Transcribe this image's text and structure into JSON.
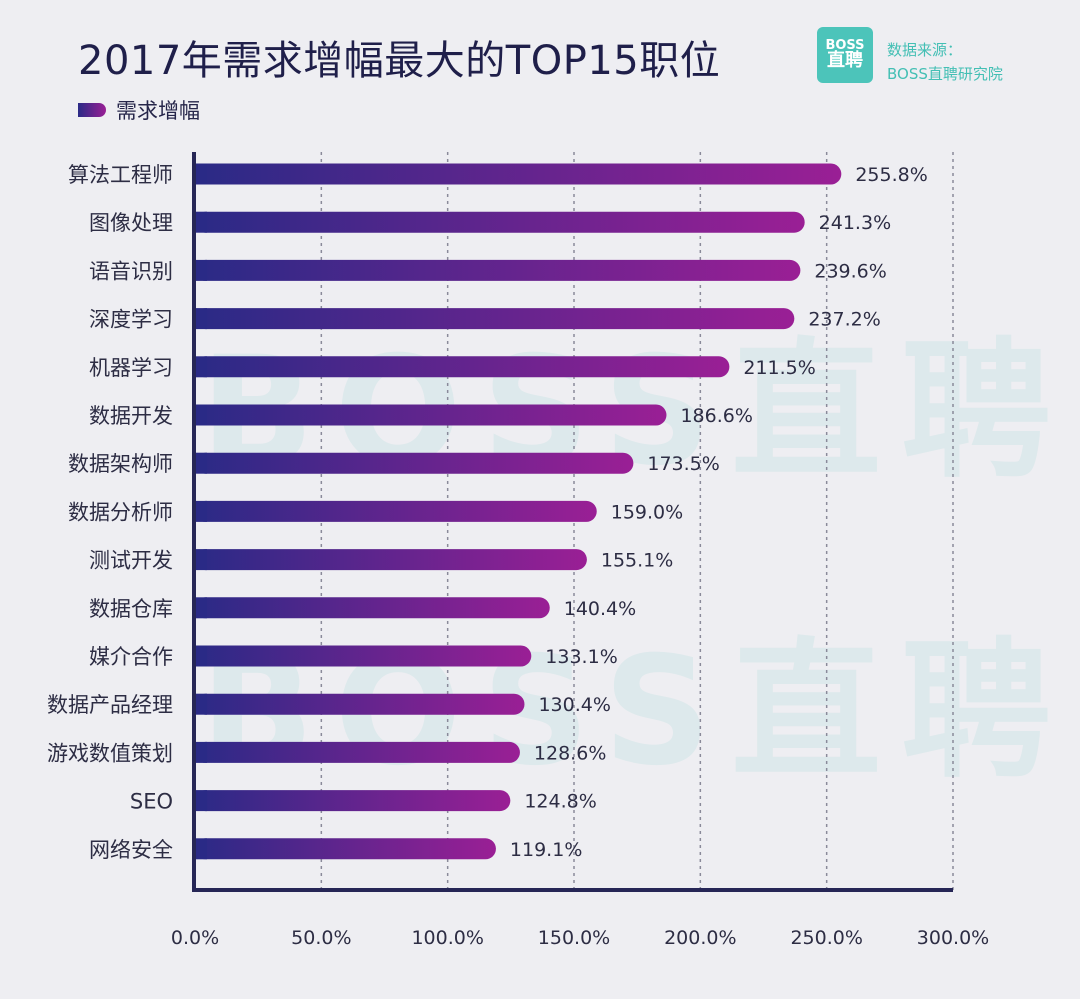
{
  "header": {
    "title": "2017年需求增幅最大的TOP15职位",
    "legend_label": "需求增幅"
  },
  "brand": {
    "logo_top": "BOSS",
    "logo_bottom": "直聘",
    "source_line1": "数据来源：",
    "source_line2": "BOSS直聘研究院",
    "watermark": "BOSS直聘",
    "color": "#4cc4ba"
  },
  "chart_data": {
    "type": "bar",
    "orientation": "horizontal",
    "categories": [
      "算法工程师",
      "图像处理",
      "语音识别",
      "深度学习",
      "机器学习",
      "数据开发",
      "数据架构师",
      "数据分析师",
      "测试开发",
      "数据仓库",
      "媒介合作",
      "数据产品经理",
      "游戏数值策划",
      "SEO",
      "网络安全"
    ],
    "series": [
      {
        "name": "需求增幅",
        "values": [
          255.8,
          241.3,
          239.6,
          237.2,
          211.5,
          186.6,
          173.5,
          159.0,
          155.1,
          140.4,
          133.1,
          130.4,
          128.6,
          124.8,
          119.1
        ],
        "labels": [
          "255.8%",
          "241.3%",
          "239.6%",
          "237.2%",
          "211.5%",
          "186.6%",
          "173.5%",
          "159.0%",
          "155.1%",
          "140.4%",
          "133.1%",
          "130.4%",
          "128.6%",
          "124.8%",
          "119.1%"
        ]
      }
    ],
    "xlim": [
      0,
      300
    ],
    "xticks": [
      0,
      50,
      100,
      150,
      200,
      250,
      300
    ],
    "xtick_labels": [
      "0.0%",
      "50.0%",
      "100.0%",
      "150.0%",
      "200.0%",
      "250.0%",
      "300.0%"
    ],
    "grid": "vertical dashed",
    "legend": "top-left",
    "colors": {
      "bar_start": "#2a2a86",
      "bar_end": "#9a1f95",
      "axis": "#262656",
      "grid": "#8a8a9a"
    }
  }
}
